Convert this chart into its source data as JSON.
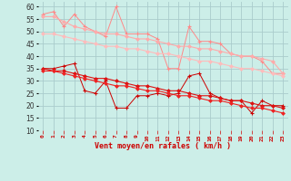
{
  "xlabel": "Vent moyen/en rafales ( km/h )",
  "background_color": "#cceee8",
  "grid_color": "#aacccc",
  "x": [
    0,
    1,
    2,
    3,
    4,
    5,
    6,
    7,
    8,
    9,
    10,
    11,
    12,
    13,
    14,
    15,
    16,
    17,
    18,
    19,
    20,
    21,
    22,
    23
  ],
  "ylim": [
    10,
    62
  ],
  "yticks": [
    10,
    15,
    20,
    25,
    30,
    35,
    40,
    45,
    50,
    55,
    60
  ],
  "series": [
    {
      "name": "light_volatile",
      "color": "#ff8888",
      "linewidth": 0.7,
      "marker": "+",
      "markersize": 3,
      "markeredgewidth": 0.8,
      "y": [
        57,
        58,
        52,
        57,
        52,
        50,
        48,
        60,
        49,
        49,
        49,
        47,
        35,
        35,
        52,
        46,
        46,
        45,
        41,
        40,
        40,
        38,
        33,
        33
      ]
    },
    {
      "name": "light_trend_upper",
      "color": "#ffaaaa",
      "linewidth": 0.8,
      "marker": "D",
      "markersize": 2,
      "markeredgewidth": 0.5,
      "y": [
        56,
        56,
        54,
        52,
        51,
        50,
        49,
        49,
        48,
        47,
        47,
        46,
        45,
        44,
        44,
        43,
        43,
        42,
        41,
        40,
        40,
        39,
        38,
        33
      ]
    },
    {
      "name": "light_trend_lower",
      "color": "#ffbbbb",
      "linewidth": 0.8,
      "marker": "D",
      "markersize": 2,
      "markeredgewidth": 0.5,
      "y": [
        49,
        49,
        48,
        47,
        46,
        45,
        44,
        44,
        43,
        43,
        42,
        41,
        41,
        40,
        39,
        38,
        38,
        37,
        36,
        35,
        35,
        34,
        33,
        32
      ]
    },
    {
      "name": "dark_volatile",
      "color": "#cc0000",
      "linewidth": 0.7,
      "marker": "+",
      "markersize": 3,
      "markeredgewidth": 0.8,
      "y": [
        35,
        35,
        36,
        37,
        26,
        25,
        30,
        19,
        19,
        24,
        24,
        25,
        24,
        25,
        32,
        33,
        25,
        23,
        22,
        22,
        17,
        22,
        20,
        20
      ]
    },
    {
      "name": "dark_trend_upper",
      "color": "#dd1111",
      "linewidth": 0.8,
      "marker": "D",
      "markersize": 2,
      "markeredgewidth": 0.5,
      "y": [
        35,
        34,
        34,
        33,
        32,
        31,
        31,
        30,
        29,
        28,
        28,
        27,
        26,
        26,
        25,
        24,
        24,
        23,
        22,
        22,
        21,
        20,
        20,
        19
      ]
    },
    {
      "name": "dark_trend_lower",
      "color": "#ee2222",
      "linewidth": 0.8,
      "marker": "D",
      "markersize": 2,
      "markeredgewidth": 0.5,
      "y": [
        34,
        34,
        33,
        32,
        31,
        30,
        29,
        28,
        28,
        27,
        26,
        26,
        25,
        24,
        24,
        23,
        22,
        22,
        21,
        20,
        19,
        19,
        18,
        17
      ]
    }
  ],
  "xtick_color": "#cc0000",
  "ytick_color": "#333333",
  "xlabel_color": "#cc0000",
  "xlabel_fontsize": 6,
  "xtick_fontsize": 4.5,
  "ytick_fontsize": 5.5
}
